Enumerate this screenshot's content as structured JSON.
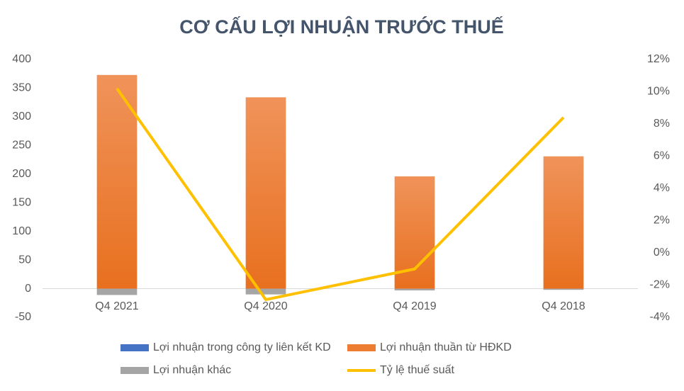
{
  "chart_data": {
    "type": "bar_line",
    "title": "CƠ CẤU LỢI NHUẬN TRƯỚC THUẾ",
    "categories": [
      "Q4 2021",
      "Q4 2020",
      "Q4 2019",
      "Q4 2018"
    ],
    "series": [
      {
        "name": "Lợi nhuận trong công ty liên kết KD",
        "color": "#4472c4",
        "type": "bar",
        "values": [
          0,
          0,
          0,
          0
        ]
      },
      {
        "name": "Lợi nhuận thuần từ HĐKD",
        "color": "#ed7d31",
        "type": "bar",
        "values": [
          373,
          334,
          196,
          231
        ]
      },
      {
        "name": "Lợi nhuận khác",
        "color": "#a5a5a5",
        "type": "bar",
        "values": [
          -11,
          -10,
          -3,
          -2
        ]
      },
      {
        "name": "Tỷ lệ thuế suất",
        "color": "#ffc000",
        "type": "line",
        "axis": "y2",
        "values": [
          10.2,
          -2.9,
          -1.0,
          8.4
        ]
      }
    ],
    "ylim": [
      -50,
      400
    ],
    "yticks": [
      -50,
      0,
      50,
      100,
      150,
      200,
      250,
      300,
      350,
      400
    ],
    "y2lim": [
      -4,
      12
    ],
    "y2ticks": [
      {
        "value": -4,
        "label": "-4%"
      },
      {
        "value": -2,
        "label": "-2%"
      },
      {
        "value": 0,
        "label": "0%"
      },
      {
        "value": 2,
        "label": "2%"
      },
      {
        "value": 4,
        "label": "4%"
      },
      {
        "value": 6,
        "label": "6%"
      },
      {
        "value": 8,
        "label": "8%"
      },
      {
        "value": 10,
        "label": "10%"
      },
      {
        "value": 12,
        "label": "12%"
      }
    ]
  }
}
